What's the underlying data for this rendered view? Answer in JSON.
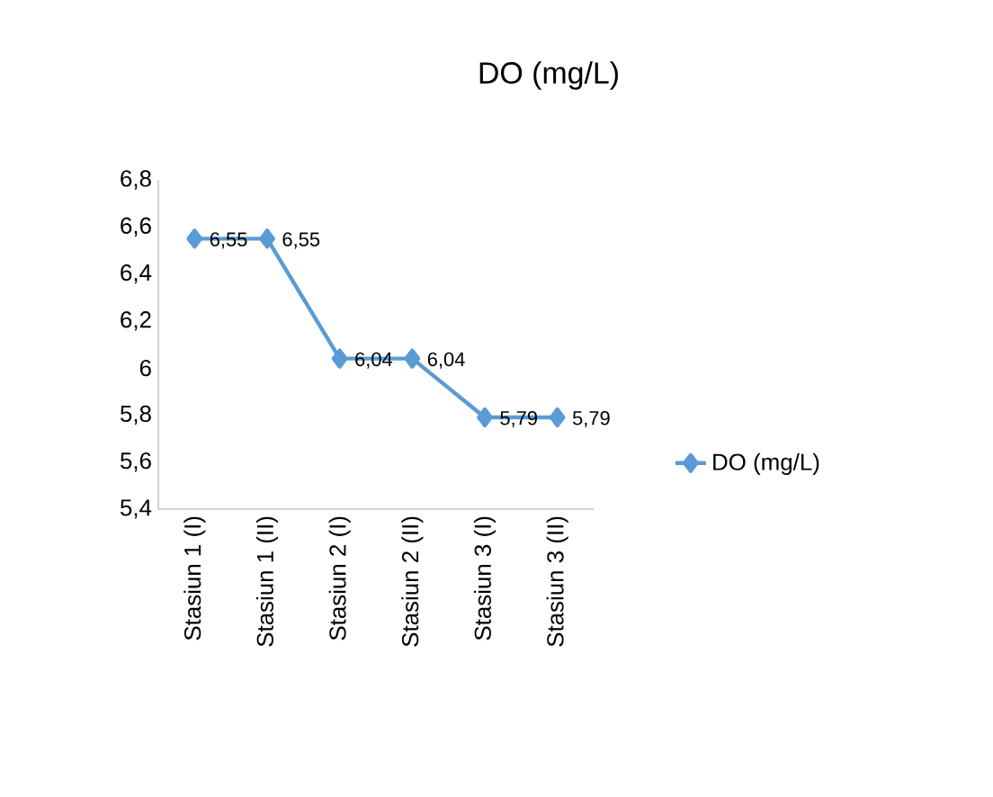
{
  "chart_data": {
    "type": "line",
    "title": "DO (mg/L)",
    "categories": [
      "Stasiun 1 (I)",
      "Stasiun 1 (II)",
      "Stasiun 2 (I)",
      "Stasiun 2 (II)",
      "Stasiun 3 (I)",
      "Stasiun 3 (II)"
    ],
    "series": [
      {
        "name": "DO (mg/L)",
        "color": "#5b9bd5",
        "values": [
          6.55,
          6.55,
          6.04,
          6.04,
          5.79,
          5.79
        ],
        "value_labels": [
          "6,55",
          "6,55",
          "6,04",
          "6,04",
          "5,79",
          "5,79"
        ]
      }
    ],
    "ylim": [
      5.4,
      6.8
    ],
    "yticks": [
      {
        "value": 5.4,
        "label": "5,4"
      },
      {
        "value": 5.6,
        "label": "5,6"
      },
      {
        "value": 5.8,
        "label": "5,8"
      },
      6,
      {
        "value": 6.2,
        "label": "6,2"
      },
      {
        "value": 6.4,
        "label": "6,4"
      },
      {
        "value": 6.6,
        "label": "6,6"
      },
      {
        "value": 6.8,
        "label": "6,8"
      }
    ],
    "grid": false,
    "legend": "right",
    "marker": "diamond",
    "line_style": "solid"
  }
}
